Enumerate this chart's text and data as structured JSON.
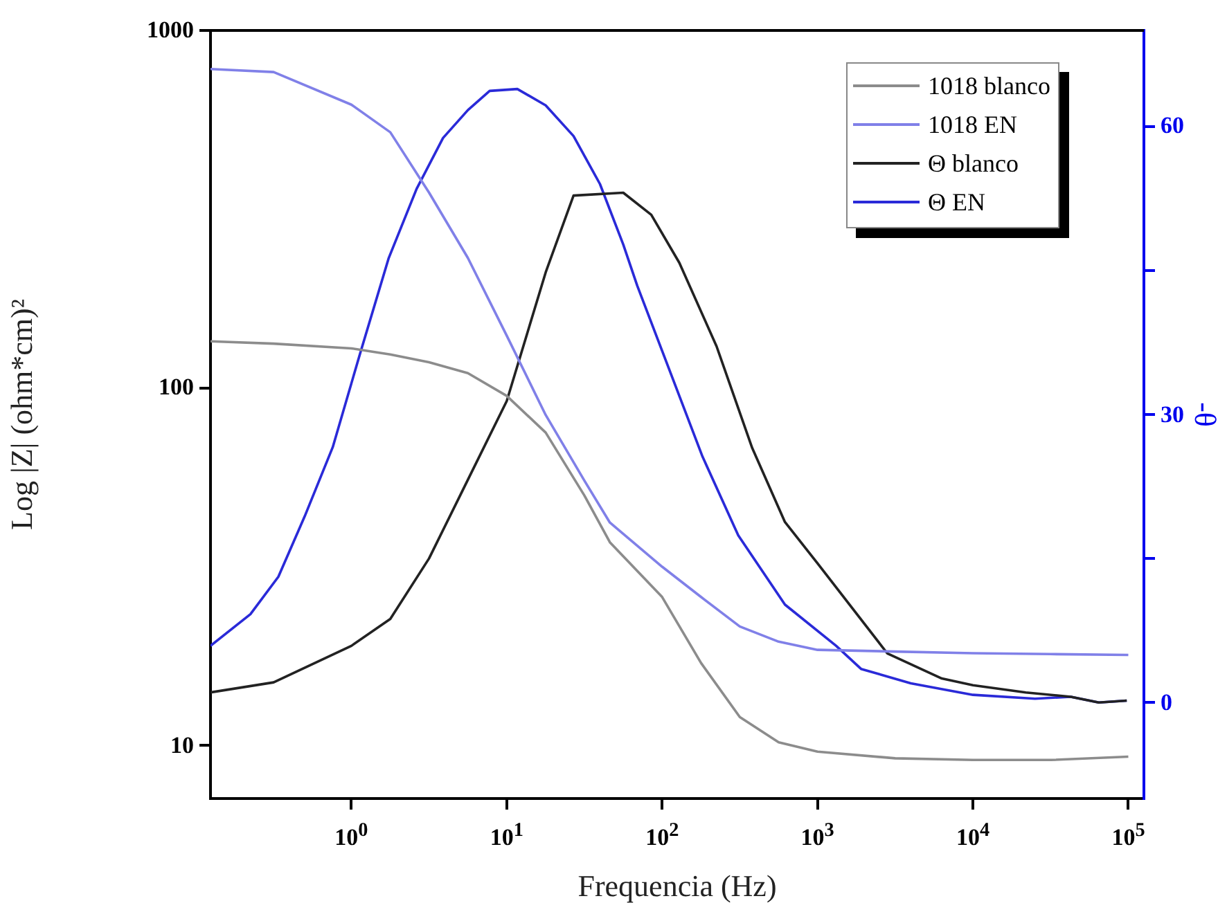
{
  "chart_data": {
    "type": "line",
    "xlabel": "Frequencia (Hz)",
    "ylabel": "Log |Z| (ohm*cm)²",
    "y2label": "-θ",
    "log": "xy",
    "grid": false,
    "legend": "top right",
    "marker": "none",
    "line_style": "solid",
    "xlim": [
      0.124,
      126000
    ],
    "xticks": [
      {
        "value": 1,
        "label": "10$^{0}$"
      },
      {
        "value": 10,
        "label": "10$^{1}$"
      },
      {
        "value": 100,
        "label": "10$^{2}$"
      },
      {
        "value": 1000,
        "label": "10$^{3}$"
      },
      {
        "value": 10000,
        "label": "10$^{4}$"
      },
      {
        "value": 100000,
        "label": "10$^{5}$"
      }
    ],
    "ylim": [
      7.1,
      1000
    ],
    "yticks": [
      10,
      100,
      1000
    ],
    "y2lim": [
      -10,
      70
    ],
    "y2ticks": [
      0,
      {
        "value": 15,
        "label": null
      },
      30,
      {
        "value": 45,
        "label": null
      },
      60
    ],
    "series": [
      {
        "name": "1018 blanco",
        "color": "#8c8c8c",
        "x": [
          0.124,
          0.316,
          1,
          1.78,
          3.16,
          5.62,
          10,
          17.8,
          31.6,
          46.1,
          100,
          178,
          316,
          562,
          1000,
          3162,
          10000,
          31623,
          100000
        ],
        "values": [
          135,
          133,
          129,
          124,
          118,
          110,
          95,
          75,
          50,
          37,
          26,
          17,
          12,
          10.2,
          9.6,
          9.2,
          9.1,
          9.1,
          9.3
        ]
      },
      {
        "name": "1018 EN",
        "color": "#8080e8",
        "x": [
          0.124,
          0.316,
          1,
          1.78,
          3.16,
          5.62,
          10,
          17.8,
          31.6,
          46.1,
          100,
          178,
          316,
          562,
          1000,
          3162,
          10000,
          31623,
          100000
        ],
        "values": [
          780,
          765,
          620,
          519,
          352,
          231,
          140,
          84,
          55,
          42,
          31.6,
          26,
          21.5,
          19.5,
          18.5,
          18.3,
          18.1,
          18,
          17.9
        ]
      },
      {
        "name": "Θ blanco",
        "color": "#222222",
        "axis": "y2",
        "x": [
          0.124,
          0.316,
          1,
          1.78,
          3.16,
          5.62,
          10,
          17.8,
          26.9,
          56.2,
          85.1,
          129,
          224,
          380,
          617,
          1000,
          2818,
          6310,
          10000,
          21878,
          42658,
          64565,
          97724
        ],
        "values": [
          1.05,
          2.1,
          5.9,
          8.7,
          15,
          23.2,
          31.4,
          44.8,
          52.8,
          53.1,
          50.8,
          45.8,
          37.1,
          26.5,
          18.8,
          14.5,
          5.1,
          2.5,
          1.8,
          1.05,
          0.6,
          0,
          0.2
        ]
      },
      {
        "name": "Θ EN",
        "color": "#2a2ad8",
        "axis": "y2",
        "x": [
          0.124,
          0.224,
          0.339,
          0.501,
          0.759,
          1.15,
          1.74,
          2.63,
          3.89,
          5.62,
          7.76,
          11.7,
          17.8,
          26.9,
          39.8,
          56.2,
          69.2,
          182,
          309,
          617,
          1318,
          1905,
          3981,
          10000,
          25119,
          42658,
          64565,
          97724
        ],
        "values": [
          5.9,
          9.2,
          13.1,
          19.4,
          26.6,
          36.6,
          46.3,
          53.5,
          58.8,
          61.7,
          63.7,
          63.9,
          62.2,
          59,
          54,
          47.7,
          43.4,
          25.6,
          17.4,
          10.2,
          5.9,
          3.5,
          2.0,
          0.8,
          0.4,
          0.6,
          0,
          0.2
        ]
      }
    ]
  }
}
